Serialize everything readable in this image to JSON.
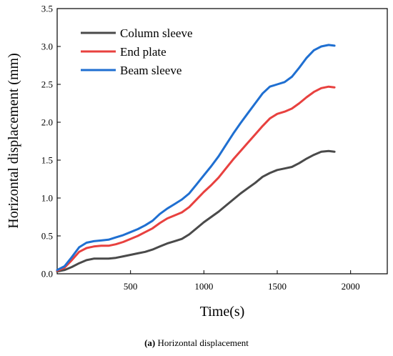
{
  "chart_data": {
    "type": "line",
    "xlabel": "Time(s)",
    "ylabel": "Horizontal displacement (mm)",
    "xlim": [
      0,
      2250
    ],
    "ylim": [
      0,
      3.5
    ],
    "xticks": [
      500,
      1000,
      1500,
      2000
    ],
    "yticks": [
      0.0,
      0.5,
      1.0,
      1.5,
      2.0,
      2.5,
      3.0,
      3.5
    ],
    "x": [
      0,
      50,
      100,
      150,
      200,
      250,
      300,
      350,
      400,
      450,
      500,
      550,
      600,
      650,
      700,
      750,
      800,
      850,
      900,
      950,
      1000,
      1050,
      1100,
      1150,
      1200,
      1250,
      1300,
      1350,
      1400,
      1450,
      1500,
      1550,
      1600,
      1650,
      1700,
      1750,
      1800,
      1850,
      1890
    ],
    "series": [
      {
        "name": "Column sleeve",
        "color": "#4a4a4a",
        "values": [
          0.03,
          0.05,
          0.09,
          0.14,
          0.18,
          0.2,
          0.2,
          0.2,
          0.21,
          0.23,
          0.25,
          0.27,
          0.29,
          0.32,
          0.36,
          0.4,
          0.43,
          0.46,
          0.52,
          0.6,
          0.68,
          0.75,
          0.82,
          0.9,
          0.98,
          1.06,
          1.13,
          1.2,
          1.28,
          1.33,
          1.37,
          1.39,
          1.41,
          1.46,
          1.52,
          1.57,
          1.61,
          1.62,
          1.61
        ]
      },
      {
        "name": "End plate",
        "color": "#e8413f",
        "values": [
          0.04,
          0.08,
          0.18,
          0.29,
          0.34,
          0.36,
          0.37,
          0.37,
          0.39,
          0.42,
          0.46,
          0.5,
          0.55,
          0.6,
          0.67,
          0.73,
          0.77,
          0.81,
          0.88,
          0.98,
          1.08,
          1.17,
          1.27,
          1.39,
          1.51,
          1.62,
          1.73,
          1.84,
          1.95,
          2.05,
          2.11,
          2.14,
          2.18,
          2.25,
          2.33,
          2.4,
          2.45,
          2.47,
          2.46
        ]
      },
      {
        "name": "Beam sleeve",
        "color": "#1f6fd1",
        "values": [
          0.05,
          0.1,
          0.22,
          0.35,
          0.41,
          0.43,
          0.44,
          0.45,
          0.48,
          0.51,
          0.55,
          0.59,
          0.64,
          0.7,
          0.79,
          0.86,
          0.92,
          0.98,
          1.06,
          1.18,
          1.3,
          1.42,
          1.55,
          1.7,
          1.85,
          1.99,
          2.12,
          2.25,
          2.38,
          2.47,
          2.5,
          2.53,
          2.6,
          2.72,
          2.85,
          2.95,
          3.0,
          3.02,
          3.01
        ]
      }
    ],
    "legend_position": "top-left"
  },
  "caption": {
    "label": "(a)",
    "text": " Horizontal displacement"
  }
}
